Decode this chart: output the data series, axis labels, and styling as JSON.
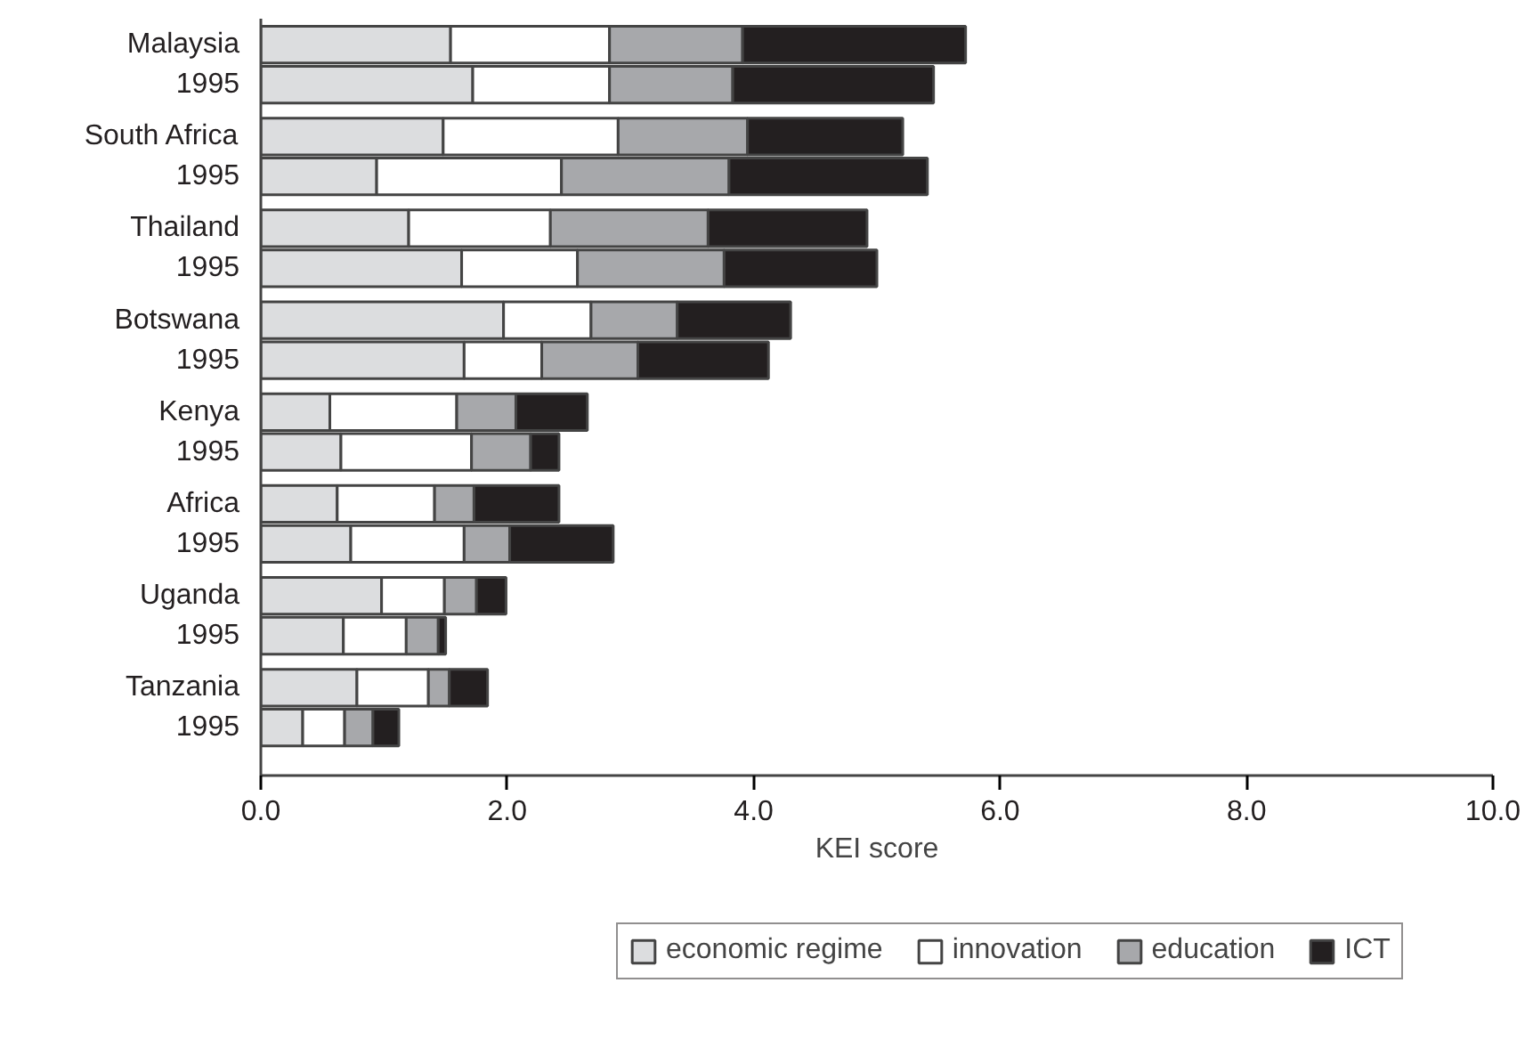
{
  "chart_data": {
    "type": "bar",
    "orientation": "horizontal",
    "stacked": true,
    "categories": [
      "Malaysia",
      "1995",
      "South Africa",
      "1995",
      "Thailand",
      "1995",
      "Botswana",
      "1995",
      "Kenya",
      "1995",
      "Africa",
      "1995",
      "Uganda",
      "1995",
      "Tanzania",
      "1995"
    ],
    "series": [
      {
        "name": "economic regime",
        "color": "#dcdddf",
        "values": [
          1.54,
          1.72,
          1.48,
          0.94,
          1.2,
          1.63,
          1.97,
          1.65,
          0.56,
          0.65,
          0.62,
          0.73,
          0.98,
          0.67,
          0.78,
          0.34
        ]
      },
      {
        "name": "innovation",
        "color": "#ffffff",
        "values": [
          1.29,
          1.11,
          1.42,
          1.5,
          1.15,
          0.94,
          0.71,
          0.63,
          1.03,
          1.06,
          0.79,
          0.92,
          0.51,
          0.51,
          0.58,
          0.34
        ]
      },
      {
        "name": "education",
        "color": "#a7a8ab",
        "values": [
          1.08,
          1.0,
          1.05,
          1.36,
          1.28,
          1.19,
          0.7,
          0.78,
          0.48,
          0.48,
          0.32,
          0.37,
          0.26,
          0.26,
          0.17,
          0.23
        ]
      },
      {
        "name": "ICT",
        "color": "#231f20",
        "values": [
          1.81,
          1.63,
          1.26,
          1.61,
          1.29,
          1.24,
          0.92,
          1.06,
          0.58,
          0.23,
          0.69,
          0.84,
          0.24,
          0.06,
          0.31,
          0.21
        ]
      }
    ],
    "xlabel": "KEI score",
    "xlim": [
      0,
      10
    ],
    "xticks": [
      {
        "value": 0,
        "label": "0.0"
      },
      {
        "value": 2,
        "label": "2.0"
      },
      {
        "value": 4,
        "label": "4.0"
      },
      {
        "value": 6,
        "label": "6.0"
      },
      {
        "value": 8,
        "label": "8.0"
      },
      {
        "value": 10,
        "label": "10.0"
      }
    ],
    "grid": false,
    "legend": "bottom"
  }
}
